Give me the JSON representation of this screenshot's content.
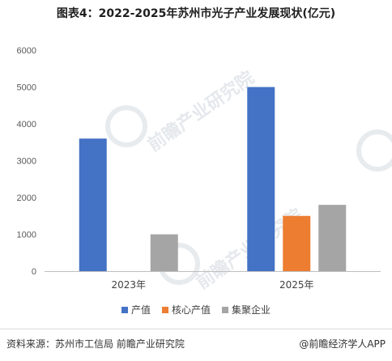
{
  "title": "图表4：2022-2025年苏州市光子产业发展现状(亿元)",
  "watermark_text": "前瞻产业研究院",
  "source": "资料来源：苏州市工信局 前瞻产业研究院",
  "brand": "@前瞻经济学人APP",
  "colors": {
    "accent": "#4472C4",
    "core": "#ED7D31",
    "cluster": "#A5A5A5"
  },
  "chart_data": {
    "type": "bar",
    "categories": [
      "2023年",
      "2025年"
    ],
    "series": [
      {
        "name": "产值",
        "color": "#4472C4",
        "values": [
          3600,
          5000
        ]
      },
      {
        "name": "核心产值",
        "color": "#ED7D31",
        "values": [
          null,
          1500
        ]
      },
      {
        "name": "集聚企业",
        "color": "#A5A5A5",
        "values": [
          1000,
          1800
        ]
      }
    ],
    "ylim": [
      0,
      6000
    ],
    "yticks": [
      "0",
      "1000",
      "2000",
      "3000",
      "4000",
      "5000",
      "6000"
    ],
    "xlabel": "",
    "ylabel": "",
    "grid": false,
    "legend_position": "bottom"
  }
}
